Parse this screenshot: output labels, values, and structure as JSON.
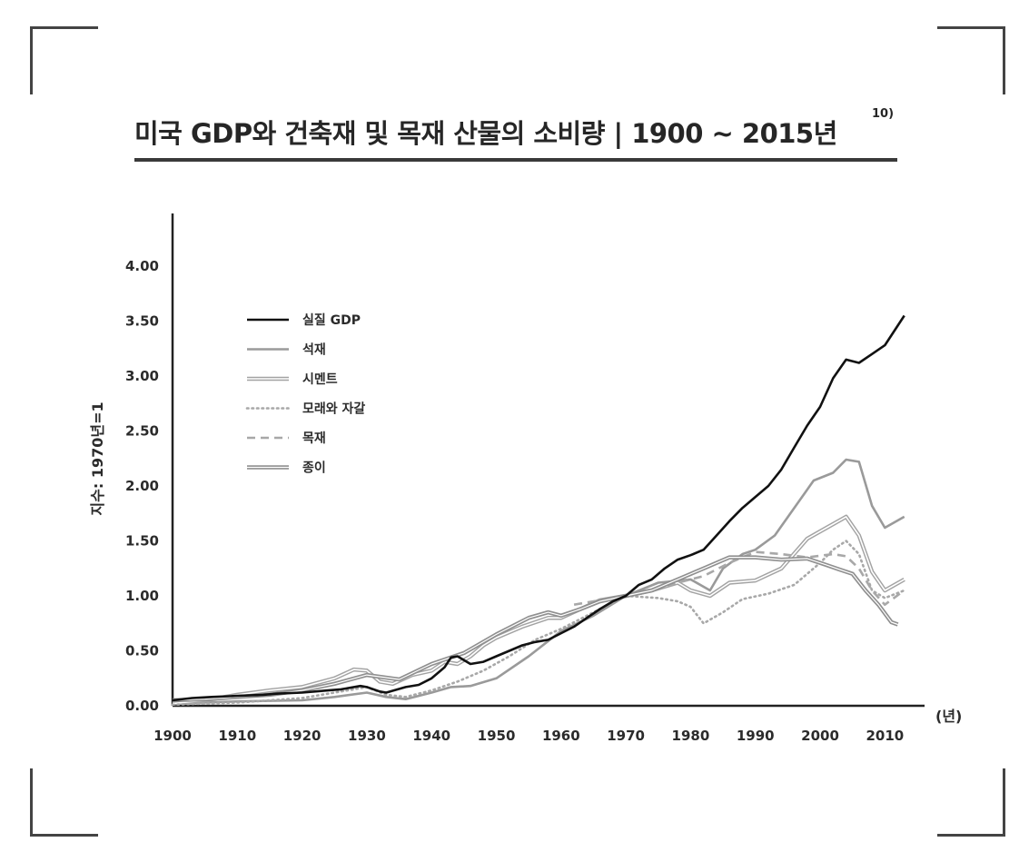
{
  "page": {
    "title": "미국 GDP와 건축재 및 목재 산물의 소비량 | 1900 ~ 2015년",
    "footnote": "10)"
  },
  "chart_data": {
    "type": "line",
    "title": "미국 GDP와 건축재 및 목재 산물의 소비량 | 1900 ~ 2015년",
    "ylabel": "지수: 1970년=1",
    "xlabel": "(년)",
    "xlim": [
      1900,
      2015
    ],
    "ylim": [
      0,
      4.5
    ],
    "xticks": [
      "1900",
      "1910",
      "1920",
      "1930",
      "1940",
      "1950",
      "1960",
      "1970",
      "1980",
      "1990",
      "2000",
      "2010"
    ],
    "yticks": [
      "0.00",
      "0.50",
      "1.00",
      "1.50",
      "2.00",
      "2.50",
      "3.00",
      "3.50",
      "4.00"
    ],
    "grid": false,
    "legend_position": "top-left",
    "series": [
      {
        "name": "실질 GDP",
        "style": "solid-black",
        "color": "#111111",
        "x": [
          1900,
          1903,
          1906,
          1910,
          1914,
          1916,
          1920,
          1924,
          1926,
          1929,
          1930,
          1932,
          1933,
          1936,
          1938,
          1940,
          1942,
          1943,
          1944,
          1946,
          1948,
          1950,
          1952,
          1954,
          1956,
          1958,
          1960,
          1962,
          1964,
          1966,
          1968,
          1970,
          1972,
          1974,
          1976,
          1978,
          1980,
          1982,
          1984,
          1986,
          1988,
          1990,
          1992,
          1994,
          1996,
          1998,
          2000,
          2002,
          2004,
          2006,
          2008,
          2010,
          2013
        ],
        "y": [
          0.05,
          0.07,
          0.08,
          0.09,
          0.1,
          0.11,
          0.12,
          0.14,
          0.15,
          0.18,
          0.17,
          0.13,
          0.12,
          0.17,
          0.19,
          0.25,
          0.35,
          0.44,
          0.45,
          0.38,
          0.4,
          0.45,
          0.5,
          0.55,
          0.58,
          0.6,
          0.66,
          0.72,
          0.8,
          0.88,
          0.95,
          1.0,
          1.1,
          1.15,
          1.25,
          1.33,
          1.37,
          1.42,
          1.55,
          1.68,
          1.8,
          1.9,
          2.0,
          2.15,
          2.35,
          2.55,
          2.72,
          2.98,
          3.15,
          3.12,
          3.2,
          3.28,
          3.55
        ]
      },
      {
        "name": "석재",
        "style": "solid-gray",
        "color": "#9a9a9a",
        "x": [
          1900,
          1910,
          1920,
          1925,
          1930,
          1933,
          1936,
          1940,
          1943,
          1946,
          1950,
          1955,
          1960,
          1965,
          1970,
          1975,
          1980,
          1983,
          1985,
          1988,
          1990,
          1993,
          1996,
          1999,
          2002,
          2004,
          2006,
          2008,
          2010,
          2013
        ],
        "y": [
          0.02,
          0.04,
          0.05,
          0.08,
          0.12,
          0.08,
          0.06,
          0.12,
          0.17,
          0.18,
          0.25,
          0.45,
          0.68,
          0.82,
          1.0,
          1.12,
          1.15,
          1.05,
          1.25,
          1.38,
          1.42,
          1.55,
          1.8,
          2.05,
          2.12,
          2.24,
          2.22,
          1.82,
          1.62,
          1.72
        ]
      },
      {
        "name": "시멘트",
        "style": "double-gray",
        "color": "#9a9a9a",
        "x": [
          1900,
          1905,
          1910,
          1915,
          1920,
          1925,
          1928,
          1930,
          1932,
          1934,
          1937,
          1940,
          1942,
          1944,
          1946,
          1948,
          1950,
          1954,
          1958,
          1960,
          1963,
          1966,
          1970,
          1974,
          1978,
          1980,
          1983,
          1986,
          1990,
          1994,
          1998,
          2001,
          2004,
          2006,
          2008,
          2010,
          2013
        ],
        "y": [
          0.02,
          0.05,
          0.1,
          0.14,
          0.17,
          0.25,
          0.33,
          0.32,
          0.22,
          0.2,
          0.28,
          0.32,
          0.4,
          0.38,
          0.45,
          0.55,
          0.62,
          0.72,
          0.8,
          0.8,
          0.88,
          0.96,
          1.0,
          1.05,
          1.12,
          1.05,
          1.0,
          1.12,
          1.14,
          1.25,
          1.52,
          1.62,
          1.72,
          1.55,
          1.22,
          1.05,
          1.15
        ]
      },
      {
        "name": "모래와 자갈",
        "style": "dotted-gray",
        "color": "#a8a8a8",
        "x": [
          1900,
          1905,
          1910,
          1915,
          1920,
          1925,
          1930,
          1933,
          1936,
          1940,
          1944,
          1948,
          1952,
          1956,
          1960,
          1965,
          1970,
          1975,
          1978,
          1980,
          1982,
          1985,
          1988,
          1992,
          1996,
          2000,
          2002,
          2004,
          2006,
          2008,
          2010,
          2013
        ],
        "y": [
          0.01,
          0.02,
          0.03,
          0.05,
          0.07,
          0.12,
          0.17,
          0.1,
          0.08,
          0.14,
          0.22,
          0.32,
          0.45,
          0.6,
          0.7,
          0.85,
          1.0,
          0.98,
          0.95,
          0.9,
          0.75,
          0.85,
          0.97,
          1.02,
          1.1,
          1.3,
          1.42,
          1.5,
          1.38,
          1.05,
          0.98,
          1.05
        ]
      },
      {
        "name": "목재",
        "style": "dashed-gray",
        "color": "#a8a8a8",
        "x": [
          1962,
          1965,
          1968,
          1970,
          1974,
          1978,
          1982,
          1986,
          1990,
          1994,
          1998,
          2002,
          2004,
          2006,
          2008,
          2010,
          2013
        ],
        "y": [
          0.92,
          0.95,
          0.98,
          1.0,
          1.06,
          1.12,
          1.18,
          1.3,
          1.4,
          1.38,
          1.35,
          1.38,
          1.36,
          1.25,
          1.05,
          0.92,
          1.05
        ]
      },
      {
        "name": "종이",
        "style": "double-gray-dark",
        "color": "#8f8f8f",
        "x": [
          1900,
          1905,
          1910,
          1915,
          1920,
          1925,
          1930,
          1935,
          1940,
          1945,
          1950,
          1955,
          1958,
          1960,
          1963,
          1966,
          1970,
          1974,
          1978,
          1982,
          1986,
          1990,
          1994,
          1998,
          2001,
          2003,
          2005,
          2007,
          2009,
          2011,
          2012
        ],
        "y": [
          0.05,
          0.06,
          0.08,
          0.1,
          0.14,
          0.2,
          0.28,
          0.24,
          0.38,
          0.48,
          0.65,
          0.8,
          0.85,
          0.82,
          0.88,
          0.95,
          1.0,
          1.05,
          1.15,
          1.25,
          1.35,
          1.35,
          1.33,
          1.34,
          1.28,
          1.24,
          1.2,
          1.05,
          0.92,
          0.76,
          0.74
        ]
      }
    ]
  }
}
